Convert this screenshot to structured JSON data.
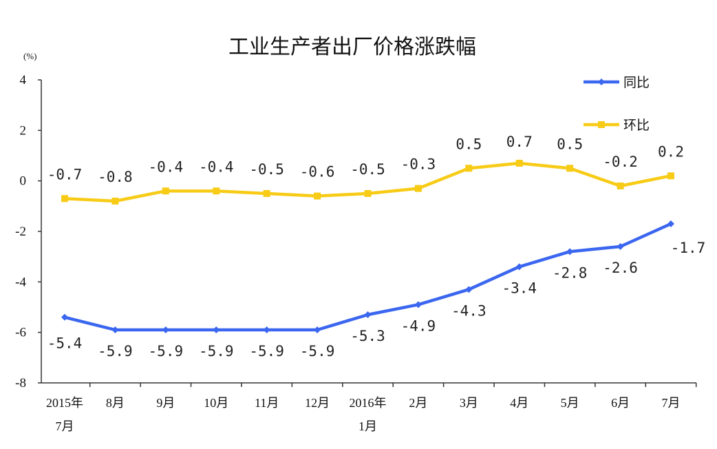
{
  "chart_data": {
    "type": "line",
    "title": "工业生产者出厂价格涨跌幅",
    "unit_label": "(%)",
    "categories": [
      [
        "2015年",
        "7月"
      ],
      [
        "8月"
      ],
      [
        "9月"
      ],
      [
        "10月"
      ],
      [
        "11月"
      ],
      [
        "12月"
      ],
      [
        "2016年",
        "1月"
      ],
      [
        "2月"
      ],
      [
        "3月"
      ],
      [
        "4月"
      ],
      [
        "5月"
      ],
      [
        "6月"
      ],
      [
        "7月"
      ]
    ],
    "ylim": [
      -8,
      4
    ],
    "yticks": [
      4,
      2,
      0,
      -2,
      -4,
      -6,
      -8
    ],
    "grid": false,
    "legend_position": "top-right",
    "series": [
      {
        "name": "同比",
        "color": "#3A66F0",
        "marker": "diamond",
        "values": [
          -5.4,
          -5.9,
          -5.9,
          -5.9,
          -5.9,
          -5.9,
          -5.3,
          -4.9,
          -4.3,
          -3.4,
          -2.8,
          -2.6,
          -1.7
        ],
        "labels": [
          "-5.4",
          "-5.9",
          "-5.9",
          "-5.9",
          "-5.9",
          "-5.9",
          "-5.3",
          "-4.9",
          "-4.3",
          "-3.4",
          "-2.8",
          "-2.6",
          "-1.7"
        ]
      },
      {
        "name": "环比",
        "color": "#F7CB16",
        "marker": "square",
        "values": [
          -0.7,
          -0.8,
          -0.4,
          -0.4,
          -0.5,
          -0.6,
          -0.5,
          -0.3,
          0.5,
          0.7,
          0.5,
          -0.2,
          0.2
        ],
        "labels": [
          "-0.7",
          "-0.8",
          "-0.4",
          "-0.4",
          "-0.5",
          "-0.6",
          "-0.5",
          "-0.3",
          "0.5",
          "0.7",
          "0.5",
          "-0.2",
          "0.2"
        ]
      }
    ]
  }
}
